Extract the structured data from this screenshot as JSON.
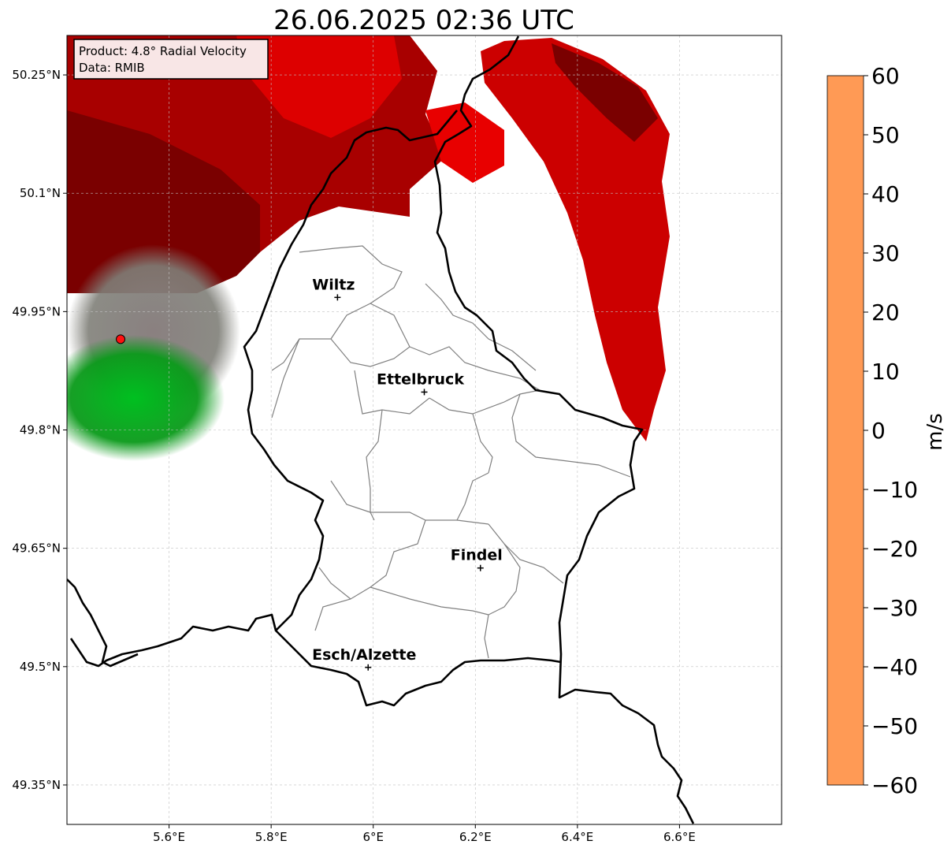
{
  "title": "26.06.2025 02:36 UTC",
  "info_box": {
    "product": "Product: 4.8° Radial Velocity",
    "data": "Data: RMIB"
  },
  "axes": {
    "x_ticks": [
      "5.6°E",
      "5.8°E",
      "6°E",
      "6.2°E",
      "6.4°E",
      "6.6°E"
    ],
    "y_ticks": [
      "50.25°N",
      "50.1°N",
      "49.95°N",
      "49.8°N",
      "49.65°N",
      "49.5°N",
      "49.35°N"
    ],
    "lon_range": [
      5.4,
      6.8
    ],
    "lat_range": [
      49.3,
      50.3
    ],
    "grid": true
  },
  "cities": [
    {
      "name": "Wiltz",
      "lon": 5.93,
      "lat": 49.968
    },
    {
      "name": "Ettelbruck",
      "lon": 6.1,
      "lat": 49.848
    },
    {
      "name": "Findel",
      "lon": 6.21,
      "lat": 49.625
    },
    {
      "name": "Esch/Alzette",
      "lon": 5.99,
      "lat": 49.499
    }
  ],
  "radar_site": {
    "lon": 5.505,
    "lat": 49.915,
    "color": "#ff1010"
  },
  "colorbar": {
    "label": "m/s",
    "min": -60,
    "max": 60,
    "ticks": [
      "60",
      "50",
      "40",
      "30",
      "20",
      "10",
      "0",
      "−10",
      "−20",
      "−30",
      "−40",
      "−50",
      "−60"
    ],
    "stops": [
      {
        "v": 60,
        "color": "#ff9a55"
      },
      {
        "v": 55,
        "color": "#ffb070"
      },
      {
        "v": 50,
        "color": "#ffd090"
      },
      {
        "v": 47,
        "color": "#ffe4a0"
      },
      {
        "v": 44,
        "color": "#ffb8b8"
      },
      {
        "v": 40,
        "color": "#ff90c8"
      },
      {
        "v": 35,
        "color": "#ff6f8f"
      },
      {
        "v": 30,
        "color": "#ff4a60"
      },
      {
        "v": 28,
        "color": "#ff1414"
      },
      {
        "v": 20,
        "color": "#dd0000"
      },
      {
        "v": 14,
        "color": "#aa0000"
      },
      {
        "v": 9,
        "color": "#780000"
      },
      {
        "v": 8,
        "color": "#7a3a40"
      },
      {
        "v": 3,
        "color": "#8a6870"
      },
      {
        "v": 0,
        "color": "#7e8478"
      },
      {
        "v": -6,
        "color": "#507a50"
      },
      {
        "v": -7,
        "color": "#005f00"
      },
      {
        "v": -18,
        "color": "#00a000"
      },
      {
        "v": -27,
        "color": "#00f000"
      },
      {
        "v": -30,
        "color": "#40ff50"
      },
      {
        "v": -34,
        "color": "#90f5b0"
      },
      {
        "v": -36,
        "color": "#b8f0f0"
      },
      {
        "v": -42,
        "color": "#88e8e8"
      },
      {
        "v": -50,
        "color": "#30dddd"
      },
      {
        "v": -55,
        "color": "#20b8d0"
      },
      {
        "v": -60,
        "color": "#2080c0"
      }
    ]
  },
  "colors": {
    "border": "#000000",
    "internal_border": "#808080",
    "grid": "#c0c0c0",
    "info_bg": "#f8e6e6"
  }
}
